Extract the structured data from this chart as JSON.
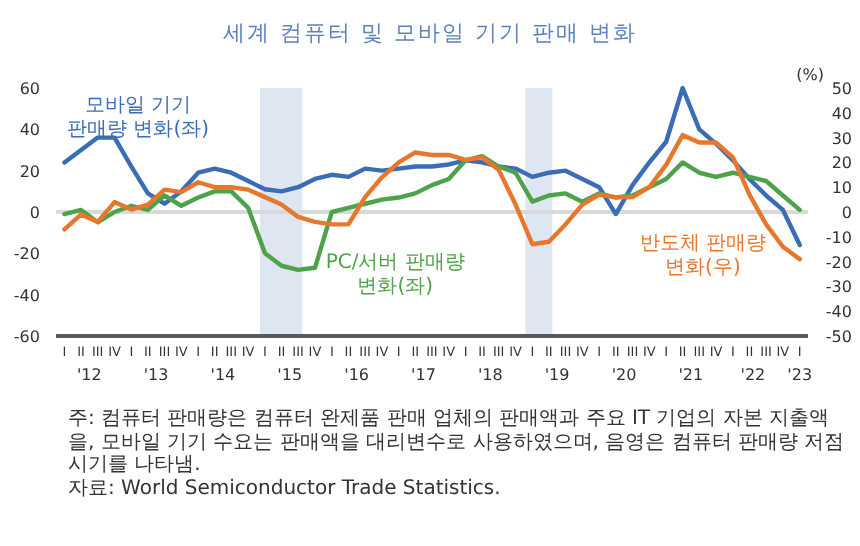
{
  "chart_data": {
    "type": "line",
    "title": "세계 컴퓨터 및 모바일 기기 판매 변화",
    "y2label": "(%)",
    "annotations": [
      "I",
      "II",
      "III",
      "IV",
      "I",
      "II",
      "III",
      "IV",
      "I",
      "II",
      "III",
      "IV",
      "I",
      "II",
      "III",
      "IV",
      "I",
      "II",
      "III",
      "IV",
      "I",
      "II",
      "III",
      "IV",
      "I",
      "II",
      "III",
      "IV",
      "I",
      "II",
      "III",
      "IV",
      "I",
      "II",
      "III",
      "IV",
      "I",
      "II",
      "III",
      "IV",
      "I",
      "II",
      "III",
      "IV",
      "I",
      "주: 컴퓨터 판매량은 컴퓨터 완제품 판매 업체의 판매액과 주요 IT 기업의 자본 지출액을, 모바일 기기 수요는 판매액을 대리변수로 사용하였으며, 음영은 컴퓨터 판매량 저점 시기를 나타냄.",
      "자료: World Semiconductor Trade Statistics."
    ],
    "x": [
      "2012-01",
      "2012-04",
      "2012-07",
      "2012-10",
      "2013-01",
      "2013-04",
      "2013-07",
      "2013-10",
      "2014-01",
      "2014-04",
      "2014-07",
      "2014-10",
      "2015-01",
      "2015-04",
      "2015-07",
      "2015-10",
      "2016-01",
      "2016-04",
      "2016-07",
      "2016-10",
      "2017-01",
      "2017-04",
      "2017-07",
      "2017-10",
      "2018-01",
      "2018-04",
      "2018-07",
      "2018-10",
      "2019-01",
      "2019-04",
      "2019-07",
      "2019-10",
      "2020-01",
      "2020-04",
      "2020-07",
      "2020-10",
      "2021-01",
      "2021-04",
      "2021-07",
      "2021-10",
      "2022-01",
      "2022-04",
      "2022-07",
      "2022-10",
      "2023-01"
    ],
    "series": [
      {
        "name": "모바일 기기\n판매량 변화(좌)",
        "color": "#3a6db5",
        "values": [
          24,
          30,
          36,
          36,
          22,
          9,
          4,
          10,
          19,
          21,
          19,
          15,
          11,
          10,
          12,
          16,
          18,
          17,
          21,
          20,
          21,
          22,
          22,
          23,
          25,
          24,
          22,
          21,
          17,
          19,
          20,
          16,
          12,
          -1,
          13,
          24,
          34,
          60,
          40,
          33,
          25,
          16,
          8,
          1,
          -16
        ]
      },
      {
        "name": "PC/서버 판매량\n변화(좌)",
        "color": "#4ea24a",
        "values": [
          -1,
          1,
          -5,
          0,
          3,
          1,
          8,
          3,
          7,
          10,
          10,
          2,
          -20,
          -26,
          -28,
          -27,
          0,
          2,
          4,
          6,
          7,
          9,
          13,
          16,
          25,
          27,
          22,
          19,
          5,
          8,
          9,
          5,
          9,
          7,
          8,
          12,
          16,
          24,
          19,
          17,
          19,
          17,
          15,
          8,
          1
        ]
      },
      {
        "name": "반도체 판매량\n변화(우)",
        "color": "#e8772e",
        "axis": "y2",
        "values": [
          -7,
          -1,
          -4,
          4,
          1,
          3,
          9,
          8,
          12,
          10,
          10,
          9,
          6,
          3,
          -2,
          -4,
          -5,
          -5,
          6,
          14,
          20,
          24,
          23,
          23,
          21,
          22,
          17,
          3,
          -13,
          -12,
          -5,
          3,
          7,
          6,
          6,
          10,
          19,
          31,
          28,
          28,
          22,
          7,
          -5,
          -14,
          -19
        ]
      }
    ],
    "xlim": [
      "2011-11-16",
      "2023-02-15"
    ],
    "xticks": [
      {
        "value": "2012-05-16",
        "label": "'12"
      },
      {
        "value": "2013-05-16",
        "label": "'13"
      },
      {
        "value": "2014-05-16",
        "label": "'14"
      },
      {
        "value": "2015-05-16",
        "label": "'15"
      },
      {
        "value": "2016-05-16",
        "label": "'16"
      },
      {
        "value": "2017-05-16",
        "label": "'17"
      },
      {
        "value": "2018-05-16",
        "label": "'18"
      },
      {
        "value": "2019-05-16",
        "label": "'19"
      },
      {
        "value": "2020-05-16",
        "label": "'20"
      },
      {
        "value": "2021-05-16",
        "label": "'21"
      },
      {
        "value": "2022-04-20",
        "label": "'22"
      },
      {
        "value": "2023-01-01",
        "label": "'23"
      }
    ],
    "ylim": [
      -60,
      60
    ],
    "yticks": [
      -60,
      -40,
      -20,
      0,
      20,
      40,
      60
    ],
    "y2lim": [
      -50,
      50
    ],
    "y2ticks": [
      -50,
      -40,
      -30,
      -20,
      -10,
      0,
      10,
      20,
      30,
      40,
      50
    ],
    "bands": [
      {
        "axis": "x",
        "from": "2014-12-05",
        "to": "2015-07-24",
        "color": "#dde6f1"
      },
      {
        "axis": "x",
        "from": "2018-11-24",
        "to": "2019-04-20",
        "color": "#dde6f1"
      }
    ],
    "ref_lines": [
      {
        "axis": "y",
        "value": 0,
        "color": "#d9d9d9"
      }
    ]
  }
}
